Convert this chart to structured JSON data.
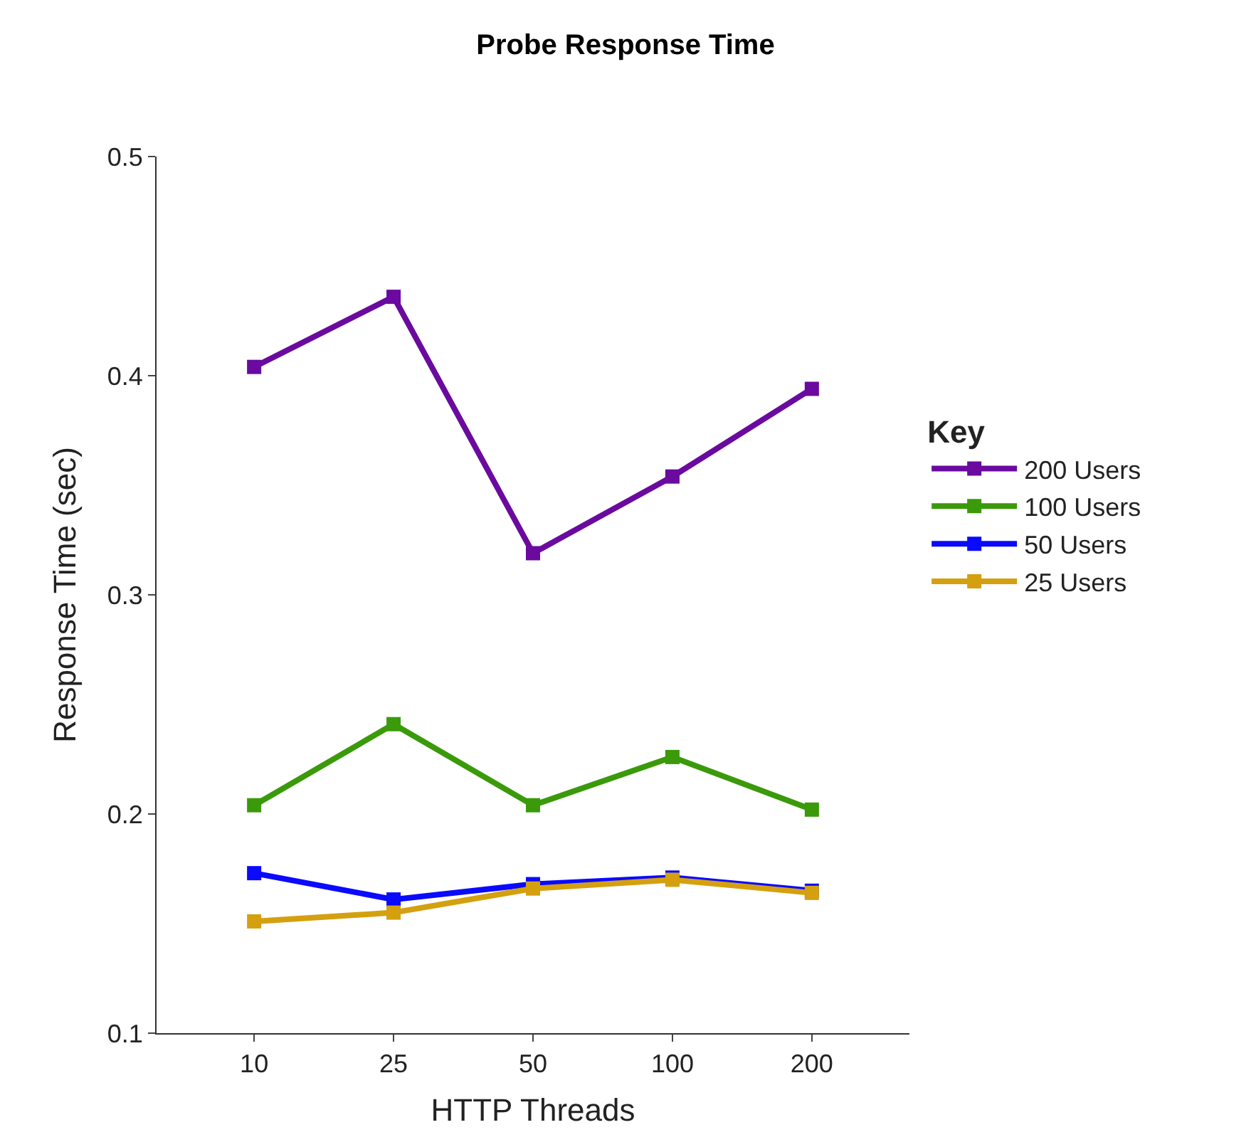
{
  "chart_data": {
    "type": "line",
    "title": "Probe Response Time",
    "xlabel": "HTTP Threads",
    "ylabel": "Response Time (sec)",
    "legend_title": "Key",
    "legend": "right",
    "marker": "square",
    "line_style": "solid",
    "categories": [
      "10",
      "25",
      "50",
      "100",
      "200"
    ],
    "ylim": [
      0.1,
      0.5
    ],
    "yticks": [
      0.1,
      0.2,
      0.3,
      0.4,
      0.5
    ],
    "series": [
      {
        "name": "200 Users",
        "color": "#6a0a9e",
        "values": [
          0.404,
          0.436,
          0.319,
          0.354,
          0.394
        ]
      },
      {
        "name": "100 Users",
        "color": "#3a9a0a",
        "values": [
          0.204,
          0.241,
          0.204,
          0.226,
          0.202
        ]
      },
      {
        "name": "50 Users",
        "color": "#0a0aff",
        "values": [
          0.173,
          0.161,
          0.168,
          0.171,
          0.165
        ]
      },
      {
        "name": "25 Users",
        "color": "#d4a010",
        "values": [
          0.151,
          0.155,
          0.166,
          0.17,
          0.164
        ]
      }
    ]
  }
}
